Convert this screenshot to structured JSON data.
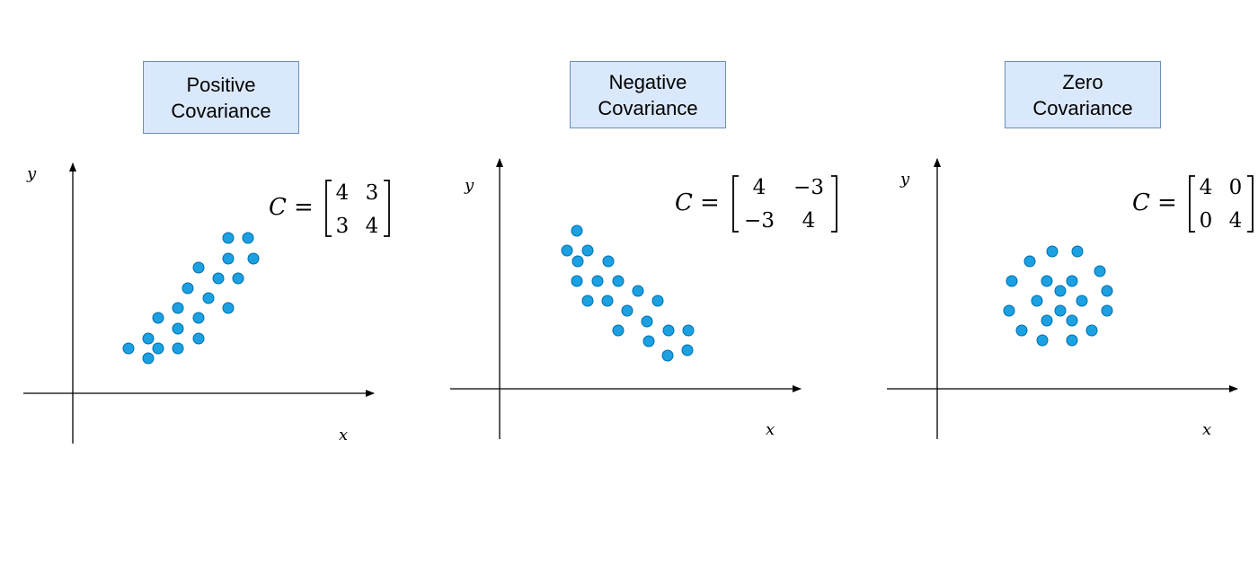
{
  "panels": [
    {
      "title_line1": "Positive",
      "title_line2": "Covariance",
      "matrix_symbol": "C",
      "matrix": [
        [
          "4",
          "3"
        ],
        [
          "3",
          "4"
        ]
      ],
      "x_axis_label": "x",
      "y_axis_label": "y"
    },
    {
      "title_line1": "Negative",
      "title_line2": "Covariance",
      "matrix_symbol": "C",
      "matrix": [
        [
          "4",
          "−3"
        ],
        [
          "−3",
          "4"
        ]
      ],
      "x_axis_label": "x",
      "y_axis_label": "y"
    },
    {
      "title_line1": "Zero",
      "title_line2": "Covariance",
      "matrix_symbol": "C",
      "matrix": [
        [
          "4",
          "0"
        ],
        [
          "0",
          "4"
        ]
      ],
      "x_axis_label": "x",
      "y_axis_label": "y"
    }
  ],
  "colors": {
    "point_fill": "#1ba1e2",
    "point_stroke": "#006eaf",
    "axis": "#000000",
    "title_fill": "#dae8fc",
    "title_stroke": "#6c8ebf"
  }
}
